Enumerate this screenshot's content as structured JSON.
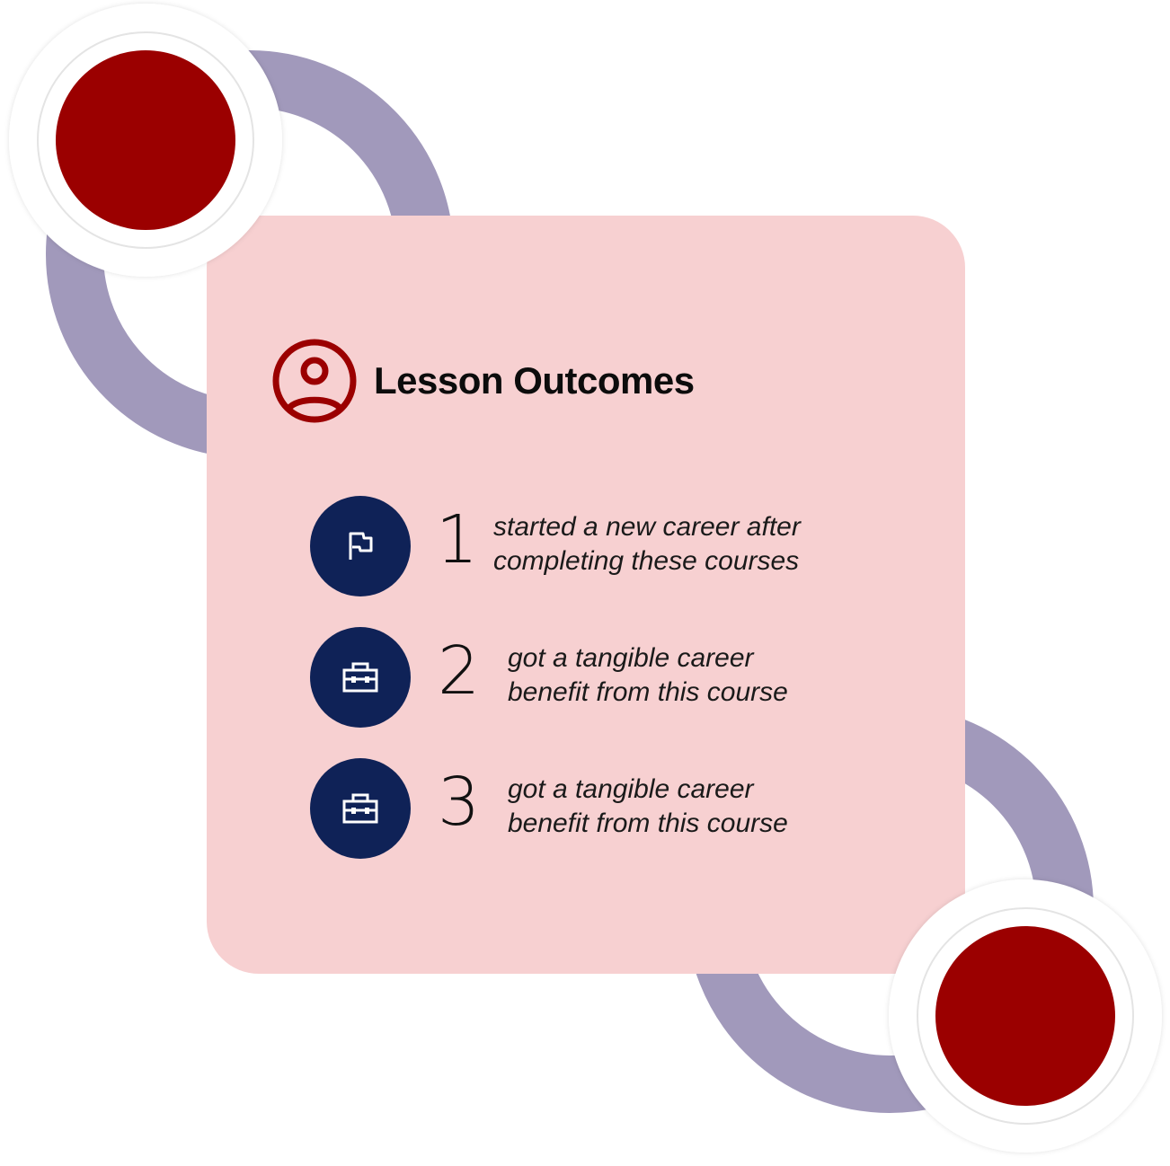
{
  "colors": {
    "card_background": "#f7d0d1",
    "accent_red": "#9b0000",
    "ring_purple": "#a199bb",
    "badge_navy": "#0f2257",
    "text_dark": "#0c0c0c"
  },
  "header": {
    "icon": "user-circle-icon",
    "title": "Lesson Outcomes"
  },
  "outcomes": [
    {
      "number": "1",
      "icon": "flag-icon",
      "text": "started a new career after\ncompleting these courses"
    },
    {
      "number": "2",
      "icon": "briefcase-icon",
      "text": "got a tangible career\nbenefit from this course"
    },
    {
      "number": "3",
      "icon": "briefcase-icon",
      "text": "got a tangible career\nbenefit from this course"
    }
  ]
}
